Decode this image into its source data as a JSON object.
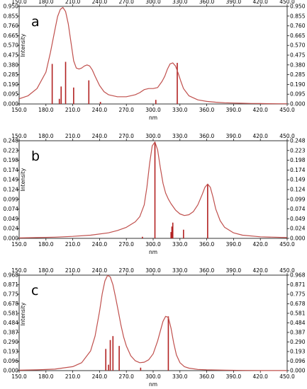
{
  "chart_data": [
    {
      "type": "line",
      "panel_label": "a",
      "xlabel": "nm",
      "ylabel": "Intensity",
      "xlim": [
        150,
        450
      ],
      "ylim": [
        0,
        0.95
      ],
      "x_ticks": [
        "150.0",
        "180.0",
        "210.0",
        "240.0",
        "270.0",
        "300.0",
        "330.0",
        "360.0",
        "390.0",
        "420.0",
        "450.0"
      ],
      "y_ticks": [
        "0.000",
        "0.095",
        "0.190",
        "0.285",
        "0.380",
        "0.475",
        "0.570",
        "0.665",
        "0.760",
        "0.855",
        "0.950"
      ],
      "grid": false,
      "line_color": "#c0504d",
      "stick_color": "#b22222",
      "series": [
        {
          "x": [
            150,
            160,
            170,
            180,
            185,
            190,
            193,
            196,
            199,
            202,
            205,
            208,
            211,
            214,
            217,
            220,
            223,
            226,
            229,
            232,
            235,
            240,
            245,
            250,
            260,
            270,
            280,
            285,
            290,
            295,
            300,
            305,
            310,
            313,
            316,
            319,
            322,
            325,
            328,
            331,
            334,
            340,
            350,
            360,
            370,
            380,
            390,
            400,
            410,
            420,
            430,
            440,
            450
          ],
          "values": [
            0.05,
            0.08,
            0.15,
            0.31,
            0.5,
            0.72,
            0.85,
            0.92,
            0.94,
            0.9,
            0.78,
            0.6,
            0.42,
            0.35,
            0.34,
            0.35,
            0.37,
            0.38,
            0.37,
            0.33,
            0.27,
            0.18,
            0.12,
            0.09,
            0.07,
            0.07,
            0.09,
            0.11,
            0.14,
            0.15,
            0.15,
            0.16,
            0.22,
            0.27,
            0.34,
            0.39,
            0.4,
            0.37,
            0.3,
            0.22,
            0.15,
            0.08,
            0.04,
            0.025,
            0.017,
            0.012,
            0.009,
            0.007,
            0.005,
            0.004,
            0.003,
            0.002,
            0.002
          ]
        }
      ],
      "sticks": {
        "x": [
          187,
          195,
          197,
          202,
          211,
          228,
          241,
          303,
          327
        ],
        "values": [
          0.39,
          0.05,
          0.17,
          0.41,
          0.16,
          0.23,
          0.02,
          0.04,
          0.4
        ]
      }
    },
    {
      "type": "line",
      "panel_label": "b",
      "xlabel": "nm",
      "ylabel": "Intensity",
      "xlim": [
        150,
        450
      ],
      "ylim": [
        0,
        0.248
      ],
      "x_ticks": [
        "150.0",
        "180.0",
        "210.0",
        "240.0",
        "270.0",
        "300.0",
        "330.0",
        "360.0",
        "390.0",
        "420.0",
        "450.0"
      ],
      "y_ticks": [
        "0.000",
        "0.024",
        "0.049",
        "0.074",
        "0.099",
        "0.124",
        "0.149",
        "0.174",
        "0.198",
        "0.223",
        "0.248"
      ],
      "grid": false,
      "line_color": "#c0504d",
      "stick_color": "#b22222",
      "series": [
        {
          "x": [
            150,
            170,
            190,
            210,
            230,
            250,
            260,
            270,
            280,
            285,
            290,
            293,
            296,
            299,
            302,
            305,
            308,
            311,
            314,
            317,
            320,
            325,
            330,
            335,
            340,
            345,
            350,
            355,
            358,
            361,
            364,
            367,
            370,
            375,
            380,
            390,
            400,
            420,
            450
          ],
          "values": [
            0.001,
            0.002,
            0.003,
            0.005,
            0.008,
            0.014,
            0.02,
            0.028,
            0.042,
            0.055,
            0.085,
            0.13,
            0.19,
            0.235,
            0.245,
            0.225,
            0.18,
            0.14,
            0.115,
            0.1,
            0.088,
            0.072,
            0.062,
            0.058,
            0.06,
            0.068,
            0.085,
            0.112,
            0.13,
            0.138,
            0.13,
            0.105,
            0.075,
            0.045,
            0.028,
            0.014,
            0.008,
            0.004,
            0.002
          ]
        }
      ],
      "sticks": {
        "x": [
          288,
          302,
          320,
          321,
          322,
          334,
          361
        ],
        "values": [
          0.004,
          0.245,
          0.016,
          0.03,
          0.04,
          0.022,
          0.138
        ]
      }
    },
    {
      "type": "line",
      "panel_label": "c",
      "xlabel": "nm",
      "ylabel": "Intensity",
      "xlim": [
        150,
        450
      ],
      "ylim": [
        0,
        0.968
      ],
      "x_ticks": [
        "150.0",
        "180.0",
        "210.0",
        "240.0",
        "270.0",
        "300.0",
        "330.0",
        "360.0",
        "390.0",
        "420.0",
        "450.0"
      ],
      "y_ticks": [
        "0.000",
        "0.096",
        "0.193",
        "0.290",
        "0.387",
        "0.484",
        "0.581",
        "0.678",
        "0.775",
        "0.871",
        "0.968"
      ],
      "grid": false,
      "line_color": "#c0504d",
      "stick_color": "#b22222",
      "series": [
        {
          "x": [
            150,
            170,
            190,
            210,
            220,
            230,
            235,
            240,
            243,
            246,
            249,
            252,
            255,
            258,
            261,
            264,
            267,
            270,
            275,
            280,
            285,
            290,
            295,
            300,
            305,
            308,
            311,
            314,
            317,
            320,
            323,
            326,
            330,
            335,
            340,
            350,
            360,
            380,
            400,
            420,
            450
          ],
          "values": [
            0.004,
            0.008,
            0.015,
            0.04,
            0.08,
            0.2,
            0.35,
            0.6,
            0.78,
            0.91,
            0.965,
            0.95,
            0.87,
            0.74,
            0.6,
            0.46,
            0.34,
            0.25,
            0.15,
            0.1,
            0.08,
            0.085,
            0.11,
            0.17,
            0.3,
            0.4,
            0.5,
            0.55,
            0.54,
            0.43,
            0.28,
            0.16,
            0.08,
            0.04,
            0.025,
            0.012,
            0.008,
            0.004,
            0.002,
            0.001,
            0.001
          ]
        }
      ],
      "sticks": {
        "x": [
          247,
          250,
          252,
          255,
          262,
          286,
          317
        ],
        "values": [
          0.22,
          0.06,
          0.31,
          0.35,
          0.25,
          0.03,
          0.55
        ]
      }
    }
  ]
}
